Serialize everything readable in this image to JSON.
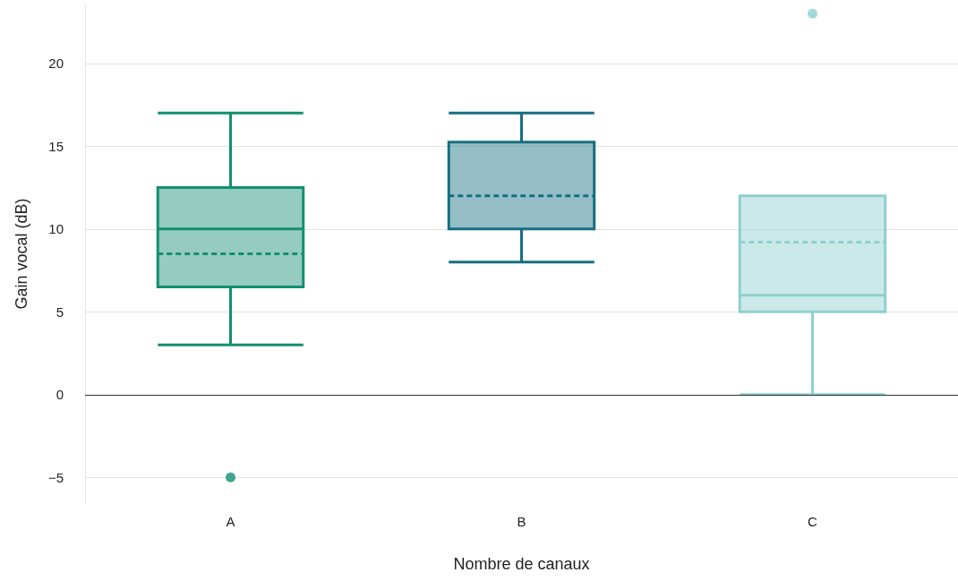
{
  "chart_data": {
    "type": "box",
    "xlabel": "Nombre de canaux",
    "ylabel": "Gain vocal (dB)",
    "categories": [
      "A",
      "B",
      "C"
    ],
    "colors": [
      "#138f70",
      "#156f80",
      "#8ecfcf"
    ],
    "boxes": [
      {
        "low": 3,
        "q1": 6.5,
        "median": 10,
        "q3": 12.5,
        "high": 17,
        "mean": 8.5,
        "outliers": [
          -5
        ]
      },
      {
        "low": 8,
        "q1": 10,
        "median": 10,
        "q3": 15.25,
        "high": 17,
        "mean": 12
      },
      {
        "low": 0,
        "q1": 5,
        "median": 6,
        "q3": 12,
        "high": 12,
        "mean": 9.2,
        "outliers": [
          23
        ]
      }
    ],
    "ylim": [
      -6.5,
      23.5
    ],
    "yticks": [
      -5,
      0,
      5,
      10,
      15,
      20
    ],
    "grid": "y",
    "ref_lines": [
      {
        "axis": "y",
        "value": 0,
        "color": "#333333"
      }
    ]
  }
}
